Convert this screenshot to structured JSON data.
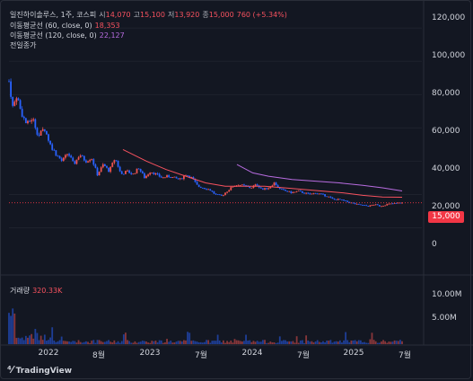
{
  "header": {
    "symbol": "일진하이솔루스, 1주, 코스피",
    "open_label": "시",
    "open_value": "14,070",
    "high_label": "고",
    "high_value": "15,100",
    "low_label": "저",
    "low_value": "13,920",
    "close_label": "종",
    "close_value": "15,000",
    "change": "760 (+5.34%)"
  },
  "indicators": [
    {
      "label": "이동평균선 (60, close, 0)",
      "value": "18,353",
      "color": "#f7525f"
    },
    {
      "label": "이동평균선 (120, close, 0)",
      "value": "22,127",
      "color": "#b86ce0"
    }
  ],
  "prev_close_label": "전일종가",
  "price_tag": "15,000",
  "volume": {
    "label": "거래량",
    "value": "320.33K"
  },
  "price_axis": [
    "120,000",
    "100,000",
    "80,000",
    "60,000",
    "40,000",
    "20,000",
    "0"
  ],
  "volume_axis": [
    "10.00M",
    "5.00M"
  ],
  "time_axis": [
    "2022",
    "8월",
    "2023",
    "7월",
    "2024",
    "7월",
    "2025",
    "7월"
  ],
  "brand": "TradingView",
  "colors": {
    "background": "#131722",
    "up": "#ef5350",
    "down": "#2962ff",
    "ma60": "#f7525f",
    "ma120": "#b86ce0",
    "price_line": "#f23645"
  },
  "chart_data": {
    "type": "candlestick",
    "y_range": [
      -10000,
      125000
    ],
    "volume_range": [
      0,
      12500000
    ],
    "price_series": [
      {
        "t": 0.0,
        "p": 88000
      },
      {
        "t": 0.01,
        "p": 72000
      },
      {
        "t": 0.02,
        "p": 80000
      },
      {
        "t": 0.03,
        "p": 70000
      },
      {
        "t": 0.045,
        "p": 62000
      },
      {
        "t": 0.06,
        "p": 66000
      },
      {
        "t": 0.075,
        "p": 55000
      },
      {
        "t": 0.09,
        "p": 60000
      },
      {
        "t": 0.105,
        "p": 50000
      },
      {
        "t": 0.12,
        "p": 44000
      },
      {
        "t": 0.135,
        "p": 40000
      },
      {
        "t": 0.15,
        "p": 45000
      },
      {
        "t": 0.165,
        "p": 38000
      },
      {
        "t": 0.18,
        "p": 44000
      },
      {
        "t": 0.195,
        "p": 40000
      },
      {
        "t": 0.21,
        "p": 42000
      },
      {
        "t": 0.225,
        "p": 32000
      },
      {
        "t": 0.24,
        "p": 38000
      },
      {
        "t": 0.255,
        "p": 34000
      },
      {
        "t": 0.27,
        "p": 42000
      },
      {
        "t": 0.285,
        "p": 32000
      },
      {
        "t": 0.3,
        "p": 34000
      },
      {
        "t": 0.315,
        "p": 32000
      },
      {
        "t": 0.33,
        "p": 36000
      },
      {
        "t": 0.345,
        "p": 30000
      },
      {
        "t": 0.36,
        "p": 34000
      },
      {
        "t": 0.375,
        "p": 32000
      },
      {
        "t": 0.39,
        "p": 30000
      },
      {
        "t": 0.405,
        "p": 31000
      },
      {
        "t": 0.42,
        "p": 30000
      },
      {
        "t": 0.435,
        "p": 29000
      },
      {
        "t": 0.45,
        "p": 32000
      },
      {
        "t": 0.465,
        "p": 30000
      },
      {
        "t": 0.48,
        "p": 25000
      },
      {
        "t": 0.495,
        "p": 24000
      },
      {
        "t": 0.51,
        "p": 23000
      },
      {
        "t": 0.525,
        "p": 20000
      },
      {
        "t": 0.54,
        "p": 19000
      },
      {
        "t": 0.555,
        "p": 22000
      },
      {
        "t": 0.57,
        "p": 25000
      },
      {
        "t": 0.585,
        "p": 26000
      },
      {
        "t": 0.6,
        "p": 25000
      },
      {
        "t": 0.615,
        "p": 24000
      },
      {
        "t": 0.63,
        "p": 26000
      },
      {
        "t": 0.645,
        "p": 23000
      },
      {
        "t": 0.66,
        "p": 24000
      },
      {
        "t": 0.675,
        "p": 27000
      },
      {
        "t": 0.69,
        "p": 23000
      },
      {
        "t": 0.705,
        "p": 22000
      },
      {
        "t": 0.72,
        "p": 21000
      },
      {
        "t": 0.735,
        "p": 22000
      },
      {
        "t": 0.75,
        "p": 21000
      },
      {
        "t": 0.765,
        "p": 20000
      },
      {
        "t": 0.78,
        "p": 21000
      },
      {
        "t": 0.795,
        "p": 20000
      },
      {
        "t": 0.81,
        "p": 19000
      },
      {
        "t": 0.825,
        "p": 17000
      },
      {
        "t": 0.84,
        "p": 17000
      },
      {
        "t": 0.855,
        "p": 16000
      },
      {
        "t": 0.87,
        "p": 15000
      },
      {
        "t": 0.885,
        "p": 14000
      },
      {
        "t": 0.9,
        "p": 13500
      },
      {
        "t": 0.915,
        "p": 13000
      },
      {
        "t": 0.93,
        "p": 14000
      },
      {
        "t": 0.945,
        "p": 13000
      },
      {
        "t": 0.96,
        "p": 14000
      },
      {
        "t": 0.975,
        "p": 14500
      },
      {
        "t": 1.0,
        "p": 15000
      }
    ],
    "ma60": [
      {
        "t": 0.29,
        "p": 47000
      },
      {
        "t": 0.35,
        "p": 40000
      },
      {
        "t": 0.4,
        "p": 35000
      },
      {
        "t": 0.45,
        "p": 31000
      },
      {
        "t": 0.5,
        "p": 27000
      },
      {
        "t": 0.55,
        "p": 25000
      },
      {
        "t": 0.6,
        "p": 25000
      },
      {
        "t": 0.65,
        "p": 25000
      },
      {
        "t": 0.7,
        "p": 24000
      },
      {
        "t": 0.75,
        "p": 23000
      },
      {
        "t": 0.8,
        "p": 22000
      },
      {
        "t": 0.85,
        "p": 21000
      },
      {
        "t": 0.9,
        "p": 19500
      },
      {
        "t": 0.95,
        "p": 18500
      },
      {
        "t": 1.0,
        "p": 18353
      }
    ],
    "ma120": [
      {
        "t": 0.58,
        "p": 38000
      },
      {
        "t": 0.62,
        "p": 33000
      },
      {
        "t": 0.66,
        "p": 31000
      },
      {
        "t": 0.72,
        "p": 29000
      },
      {
        "t": 0.78,
        "p": 28000
      },
      {
        "t": 0.84,
        "p": 27000
      },
      {
        "t": 0.9,
        "p": 25500
      },
      {
        "t": 0.95,
        "p": 24000
      },
      {
        "t": 1.0,
        "p": 22127
      }
    ]
  }
}
